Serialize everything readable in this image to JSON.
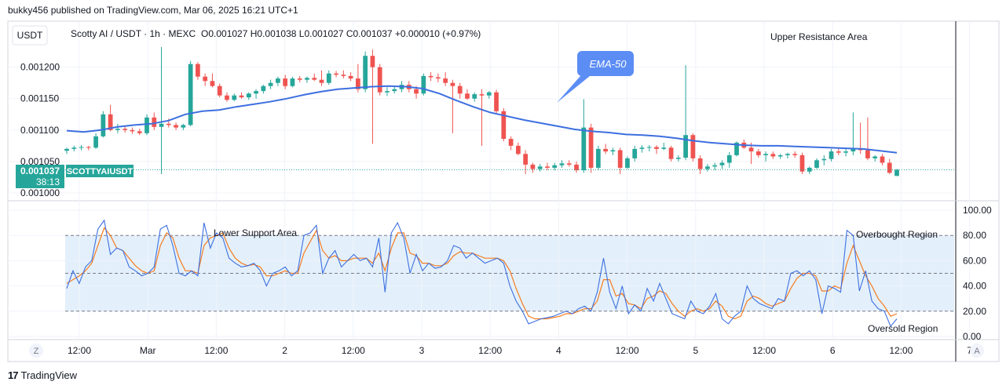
{
  "header": {
    "attribution": "bukky456 published on TradingView.com, Mar 06, 2025 16:21 UTC+1"
  },
  "toolbar": {
    "currency_button": "USDT",
    "zoom_button": "Z",
    "auto_button": "A"
  },
  "legend": {
    "symbol": "Scotty AI / USDT · 1h · MEXC",
    "ohlc": "O0.001027 H0.001038 L0.001027 C0.001037 +0.000010 (+0.97%)"
  },
  "price_tag": {
    "last_price": "0.001037",
    "countdown": "38:13",
    "symbol_label": "SCOTTYAIUSDT"
  },
  "annotations": {
    "upper_resistance": "Upper Resistance Area",
    "ema_callout": "EMA-50",
    "lower_support": "Lower Support Area",
    "overbought": "Overbought Region",
    "oversold": "Oversold Region"
  },
  "footer": {
    "brand": "TradingView"
  },
  "colors": {
    "up": "#26a69a",
    "down": "#ef5350",
    "ema": "#3d6fe0",
    "osc_k": "#3d6fe0",
    "osc_d": "#f57c20",
    "osc_band": "#e3f0fb",
    "callout": "#5c8df5"
  },
  "chart_data": [
    {
      "type": "candlestick",
      "title": "Scotty AI / USDT · 1h · MEXC",
      "ylim": [
        0.000995,
        0.001232
      ],
      "y_ticks": [
        "0.001200",
        "0.001150",
        "0.001100",
        "0.001050",
        "0.001000"
      ],
      "x_ticks": [
        "12:00",
        "Mar",
        "12:00",
        "2",
        "12:00",
        "3",
        "12:00",
        "4",
        "12:00",
        "5",
        "12:00",
        "6",
        "12:00",
        "7"
      ],
      "grid": true,
      "candles": [
        [
          0.001067,
          0.001072,
          0.001062,
          0.00107
        ],
        [
          0.00107,
          0.001075,
          0.001066,
          0.001072
        ],
        [
          0.001072,
          0.001076,
          0.001068,
          0.001073
        ],
        [
          0.001073,
          0.001075,
          0.001068,
          0.001072
        ],
        [
          0.001072,
          0.001095,
          0.00107,
          0.00109
        ],
        [
          0.00109,
          0.00113,
          0.001088,
          0.001125
        ],
        [
          0.001125,
          0.00114,
          0.001098,
          0.0011
        ],
        [
          0.0011,
          0.00111,
          0.001095,
          0.001102
        ],
        [
          0.001102,
          0.001106,
          0.001096,
          0.0011
        ],
        [
          0.0011,
          0.001104,
          0.001094,
          0.001098
        ],
        [
          0.001098,
          0.001102,
          0.001092,
          0.001095
        ],
        [
          0.001095,
          0.001125,
          0.001092,
          0.00112
        ],
        [
          0.00112,
          0.001128,
          0.0011,
          0.001105
        ],
        [
          0.001105,
          0.001232,
          0.00103,
          0.00111
        ],
        [
          0.00111,
          0.001118,
          0.001104,
          0.001108
        ],
        [
          0.001108,
          0.001112,
          0.0011,
          0.001104
        ],
        [
          0.001104,
          0.00111,
          0.0011,
          0.001108
        ],
        [
          0.001108,
          0.00121,
          0.001106,
          0.001205
        ],
        [
          0.001205,
          0.001208,
          0.00118,
          0.001185
        ],
        [
          0.001185,
          0.00119,
          0.00117,
          0.001178
        ],
        [
          0.001178,
          0.00119,
          0.001168,
          0.00117
        ],
        [
          0.00117,
          0.001174,
          0.001152,
          0.001155
        ],
        [
          0.001155,
          0.00116,
          0.001145,
          0.001148
        ],
        [
          0.001148,
          0.001158,
          0.001146,
          0.001155
        ],
        [
          0.001155,
          0.00116,
          0.00115,
          0.001152
        ],
        [
          0.001152,
          0.00116,
          0.001148,
          0.001158
        ],
        [
          0.001158,
          0.001165,
          0.00115,
          0.001162
        ],
        [
          0.001162,
          0.001172,
          0.001158,
          0.00117
        ],
        [
          0.00117,
          0.00118,
          0.001165,
          0.001175
        ],
        [
          0.001175,
          0.001185,
          0.00117,
          0.001182
        ],
        [
          0.001182,
          0.001188,
          0.001165,
          0.00117
        ],
        [
          0.00117,
          0.001185,
          0.001168,
          0.001182
        ],
        [
          0.001182,
          0.001186,
          0.001176,
          0.00118
        ],
        [
          0.00118,
          0.001185,
          0.001175,
          0.001183
        ],
        [
          0.001183,
          0.00119,
          0.001178,
          0.00118
        ],
        [
          0.00118,
          0.001195,
          0.00117,
          0.001175
        ],
        [
          0.001175,
          0.001195,
          0.001172,
          0.00119
        ],
        [
          0.00119,
          0.001194,
          0.001184,
          0.001188
        ],
        [
          0.001188,
          0.001195,
          0.001182,
          0.001186
        ],
        [
          0.001186,
          0.001192,
          0.001178,
          0.001182
        ],
        [
          0.001182,
          0.001205,
          0.00116,
          0.001165
        ],
        [
          0.001165,
          0.001225,
          0.00116,
          0.001218
        ],
        [
          0.001218,
          0.001228,
          0.001078,
          0.0012
        ],
        [
          0.0012,
          0.001205,
          0.001155,
          0.00116
        ],
        [
          0.00116,
          0.001168,
          0.001154,
          0.001162
        ],
        [
          0.001162,
          0.00117,
          0.001158,
          0.001165
        ],
        [
          0.001165,
          0.001178,
          0.00116,
          0.001172
        ],
        [
          0.001172,
          0.001178,
          0.00116,
          0.001165
        ],
        [
          0.001165,
          0.00117,
          0.00115,
          0.001158
        ],
        [
          0.001158,
          0.00119,
          0.001155,
          0.001186
        ],
        [
          0.001186,
          0.001192,
          0.001178,
          0.001184
        ],
        [
          0.001184,
          0.00119,
          0.001176,
          0.001182
        ],
        [
          0.001182,
          0.001192,
          0.00117,
          0.001175
        ],
        [
          0.001175,
          0.00118,
          0.001095,
          0.00117
        ],
        [
          0.00117,
          0.001175,
          0.00115,
          0.001158
        ],
        [
          0.001158,
          0.001165,
          0.001148,
          0.00115
        ],
        [
          0.00115,
          0.00116,
          0.001145,
          0.001157
        ],
        [
          0.001157,
          0.001165,
          0.001075,
          0.001155
        ],
        [
          0.001155,
          0.001162,
          0.00115,
          0.00116
        ],
        [
          0.00116,
          0.001164,
          0.001126,
          0.00113
        ],
        [
          0.00113,
          0.001135,
          0.001082,
          0.001086
        ],
        [
          0.001086,
          0.00109,
          0.001068,
          0.001075
        ],
        [
          0.001075,
          0.00108,
          0.00106,
          0.001062
        ],
        [
          0.001062,
          0.001068,
          0.00103,
          0.001045
        ],
        [
          0.001045,
          0.001048,
          0.001032,
          0.001038
        ],
        [
          0.001038,
          0.001046,
          0.001034,
          0.001042
        ],
        [
          0.001042,
          0.001048,
          0.001036,
          0.00104
        ],
        [
          0.00104,
          0.001048,
          0.001036,
          0.001044
        ],
        [
          0.001044,
          0.001052,
          0.00104,
          0.001047
        ],
        [
          0.001047,
          0.001052,
          0.001042,
          0.001045
        ],
        [
          0.001045,
          0.00105,
          0.001032,
          0.001036
        ],
        [
          0.001036,
          0.001149,
          0.001032,
          0.001104
        ],
        [
          0.001104,
          0.00111,
          0.001032,
          0.00104
        ],
        [
          0.00104,
          0.001075,
          0.001036,
          0.00107
        ],
        [
          0.00107,
          0.001078,
          0.001062,
          0.001066
        ],
        [
          0.001066,
          0.001072,
          0.00106,
          0.001068
        ],
        [
          0.001068,
          0.001072,
          0.00103,
          0.00104
        ],
        [
          0.00104,
          0.001058,
          0.001038,
          0.001055
        ],
        [
          0.001055,
          0.001075,
          0.00105,
          0.00107
        ],
        [
          0.00107,
          0.001076,
          0.001064,
          0.001072
        ],
        [
          0.001072,
          0.001076,
          0.001066,
          0.001073
        ],
        [
          0.001073,
          0.001076,
          0.001062,
          0.00107
        ],
        [
          0.00107,
          0.00108,
          0.001068,
          0.001072
        ],
        [
          0.001072,
          0.001075,
          0.00105,
          0.001054
        ],
        [
          0.001054,
          0.00106,
          0.00105,
          0.001056
        ],
        [
          0.001056,
          0.001203,
          0.001052,
          0.001092
        ],
        [
          0.001092,
          0.001095,
          0.00105,
          0.001055
        ],
        [
          0.001055,
          0.00106,
          0.00103,
          0.001038
        ],
        [
          0.001038,
          0.001046,
          0.001034,
          0.001042
        ],
        [
          0.001042,
          0.001048,
          0.001036,
          0.001044
        ],
        [
          0.001044,
          0.001052,
          0.001038,
          0.001048
        ],
        [
          0.001048,
          0.001065,
          0.00104,
          0.00106
        ],
        [
          0.00106,
          0.001082,
          0.001058,
          0.00108
        ],
        [
          0.00108,
          0.001085,
          0.00107,
          0.001072
        ],
        [
          0.001072,
          0.00108,
          0.001046,
          0.001066
        ],
        [
          0.001066,
          0.00107,
          0.001056,
          0.00106
        ],
        [
          0.00106,
          0.001066,
          0.00105,
          0.001062
        ],
        [
          0.001062,
          0.001066,
          0.001054,
          0.001058
        ],
        [
          0.001058,
          0.001062,
          0.001054,
          0.00106
        ],
        [
          0.00106,
          0.001064,
          0.001055,
          0.001062
        ],
        [
          0.001062,
          0.001066,
          0.001056,
          0.00106
        ],
        [
          0.00106,
          0.001064,
          0.00103,
          0.001034
        ],
        [
          0.001034,
          0.001042,
          0.00103,
          0.00104
        ],
        [
          0.00104,
          0.001055,
          0.001038,
          0.001052
        ],
        [
          0.001052,
          0.00106,
          0.001044,
          0.001054
        ],
        [
          0.001054,
          0.00107,
          0.00105,
          0.001066
        ],
        [
          0.001066,
          0.001072,
          0.00106,
          0.001064
        ],
        [
          0.001064,
          0.00107,
          0.001058,
          0.001066
        ],
        [
          0.001066,
          0.001128,
          0.00106,
          0.00107
        ],
        [
          0.00107,
          0.001112,
          0.001062,
          0.001068
        ],
        [
          0.001068,
          0.00112,
          0.001052,
          0.001055
        ],
        [
          0.001055,
          0.00106,
          0.00105,
          0.001058
        ],
        [
          0.001058,
          0.001062,
          0.001044,
          0.001048
        ],
        [
          0.001048,
          0.001054,
          0.00103,
          0.001032
        ],
        [
          0.001027,
          0.001038,
          0.001027,
          0.001037
        ]
      ],
      "ema50": [
        0.001099,
        0.001097,
        0.0011,
        0.001105,
        0.001108,
        0.00111,
        0.001115,
        0.001125,
        0.00113,
        0.001132,
        0.001137,
        0.001141,
        0.001145,
        0.00115,
        0.001156,
        0.001161,
        0.001165,
        0.001167,
        0.001169,
        0.00117,
        0.001169,
        0.001166,
        0.001158,
        0.001147,
        0.001137,
        0.001128,
        0.001122,
        0.001116,
        0.001111,
        0.001106,
        0.001101,
        0.001098,
        0.001096,
        0.001093,
        0.001092,
        0.00109,
        0.001087,
        0.001083,
        0.00108,
        0.001078,
        0.001076,
        0.001075,
        0.001075,
        0.001074,
        0.001073,
        0.001072,
        0.001071,
        0.00107,
        0.001067,
        0.001064
      ]
    },
    {
      "type": "line",
      "title": "",
      "ylim": [
        0,
        100
      ],
      "y_ticks": [
        "100.00",
        "80.00",
        "60.00",
        "40.00",
        "20.00",
        "0.00"
      ],
      "bands": [
        20,
        50,
        80
      ],
      "series": [
        {
          "values": [
            38,
            52,
            42,
            55,
            60,
            85,
            92,
            65,
            70,
            68,
            55,
            52,
            48,
            50,
            55,
            85,
            88,
            72,
            50,
            48,
            52,
            48,
            90,
            70,
            82,
            78,
            62,
            58,
            55,
            56,
            58,
            52,
            40,
            50,
            52,
            55,
            48,
            52,
            80,
            82,
            88,
            50,
            62,
            68,
            55,
            60,
            65,
            60,
            62,
            55,
            78,
            35,
            82,
            90,
            78,
            50,
            65,
            52,
            58,
            54,
            55,
            60,
            72,
            70,
            62,
            66,
            62,
            58,
            60,
            62,
            58,
            40,
            28,
            20,
            10,
            12,
            14,
            15,
            16,
            18,
            20,
            18,
            22,
            24,
            20,
            35,
            62,
            35,
            22,
            40,
            18,
            25,
            20,
            38,
            28,
            42,
            30,
            18,
            16,
            14,
            28,
            20,
            18,
            24,
            34,
            14,
            10,
            16,
            20,
            40,
            30,
            26,
            24,
            22,
            30,
            28,
            50,
            52,
            48,
            52,
            45,
            18,
            40,
            38,
            35,
            84,
            80,
            36,
            52,
            28,
            22,
            20,
            8,
            14
          ]
        },
        {
          "values": [
            42,
            45,
            48,
            52,
            58,
            72,
            86,
            80,
            70,
            68,
            62,
            56,
            52,
            50,
            52,
            72,
            82,
            78,
            62,
            52,
            52,
            50,
            72,
            78,
            80,
            82,
            70,
            62,
            58,
            56,
            57,
            55,
            48,
            48,
            50,
            52,
            50,
            50,
            66,
            75,
            84,
            68,
            62,
            64,
            60,
            60,
            62,
            62,
            62,
            58,
            66,
            52,
            70,
            82,
            82,
            66,
            64,
            58,
            58,
            56,
            56,
            58,
            64,
            67,
            66,
            66,
            64,
            62,
            62,
            62,
            60,
            52,
            38,
            26,
            16,
            14,
            14,
            14,
            15,
            16,
            18,
            18,
            20,
            22,
            22,
            28,
            45,
            45,
            32,
            34,
            26,
            25,
            22,
            30,
            32,
            36,
            34,
            26,
            20,
            16,
            20,
            22,
            20,
            22,
            28,
            24,
            16,
            14,
            16,
            28,
            32,
            30,
            26,
            24,
            26,
            28,
            38,
            46,
            50,
            50,
            48,
            36,
            36,
            40,
            38,
            58,
            72,
            60,
            48,
            40,
            30,
            24,
            16,
            18
          ]
        }
      ]
    }
  ]
}
